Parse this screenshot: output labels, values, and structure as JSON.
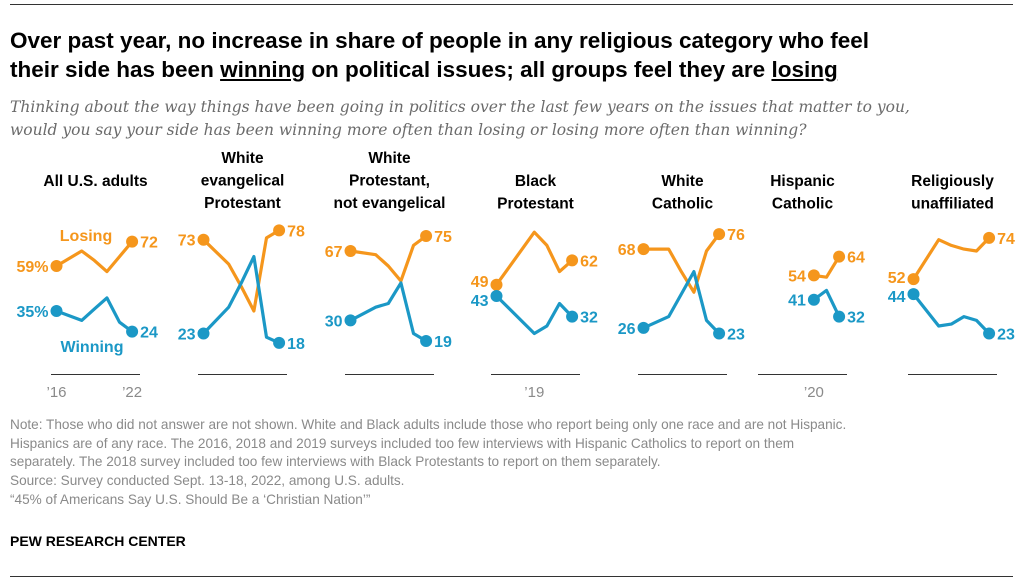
{
  "title": {
    "line1": "Over past year, no increase in share of people in any religious category who feel",
    "line2_pre": "their side has been ",
    "line2_u1": "winning",
    "line2_mid": " on political issues; all groups feel they are ",
    "line2_u2": "losing"
  },
  "subtitle": {
    "line1": "Thinking about the way things have been going in politics over the last few years on the issues that matter to you,",
    "line2": "would you say your side has been winning more often than losing or losing more often than winning?"
  },
  "chart_data": {
    "type": "line",
    "colors": {
      "Losing": "#F5961C",
      "Winning": "#1B98C6"
    },
    "series_labels": {
      "losing": "Losing",
      "winning": "Winning"
    },
    "years": [
      2016,
      2018,
      2019,
      2020,
      2021,
      2022
    ],
    "panels": [
      {
        "title": [
          "All U.S. adults"
        ],
        "ticks": [
          {
            "year": 2016,
            "label": "’16"
          },
          {
            "year": 2022,
            "label": "’22"
          }
        ],
        "losing": [
          59,
          67,
          62,
          56,
          64,
          72
        ],
        "winning": [
          35,
          30,
          36,
          42,
          29,
          24
        ],
        "first_suffix": "%"
      },
      {
        "title": [
          "White",
          "evangelical",
          "Protestant"
        ],
        "ticks": [],
        "losing": [
          73,
          60,
          48,
          35,
          74,
          78
        ],
        "winning": [
          23,
          37,
          50,
          64,
          21,
          18
        ]
      },
      {
        "title": [
          "White",
          "Protestant,",
          "not evangelical"
        ],
        "ticks": [],
        "losing": [
          67,
          65,
          59,
          51,
          70,
          75
        ],
        "winning": [
          30,
          37,
          39,
          50,
          23,
          19
        ]
      },
      {
        "title": [
          "Black",
          "Protestant"
        ],
        "ticks": [
          {
            "year": 2019,
            "label": "’19"
          }
        ],
        "losing": [
          49,
          null,
          77,
          70,
          56,
          62
        ],
        "winning": [
          43,
          null,
          23,
          27,
          39,
          32
        ]
      },
      {
        "title": [
          "White",
          "Catholic"
        ],
        "ticks": [],
        "losing": [
          68,
          68,
          56,
          45,
          67,
          76
        ],
        "winning": [
          26,
          32,
          44,
          56,
          30,
          23
        ]
      },
      {
        "title": [
          "Hispanic",
          "Catholic"
        ],
        "ticks": [
          {
            "year": 2020,
            "label": "’20"
          }
        ],
        "losing": [
          null,
          null,
          null,
          54,
          53,
          64
        ],
        "winning": [
          null,
          null,
          null,
          41,
          46,
          32
        ]
      },
      {
        "title": [
          "Religiously",
          "unaffiliated"
        ],
        "ticks": [],
        "losing": [
          52,
          73,
          70,
          68,
          67,
          74
        ],
        "winning": [
          44,
          27,
          28,
          32,
          30,
          23
        ]
      }
    ],
    "ylim": [
      0,
      100
    ],
    "grid": false,
    "legend": "inline labels in first panel"
  },
  "notes": [
    "Note: Those who did not answer are not shown. White and Black adults include those who report being only one race and are not Hispanic.",
    "Hispanics are of any race. The 2016, 2018 and 2019 surveys included too few interviews with Hispanic Catholics to report on them",
    "separately. The 2018 survey included too few interviews with Black Protestants to report on them separately.",
    "Source: Survey conducted Sept. 13-18, 2022, among U.S. adults.",
    "“45% of Americans Say U.S. Should Be a ‘Christian Nation’”"
  ],
  "brand": "PEW RESEARCH CENTER"
}
